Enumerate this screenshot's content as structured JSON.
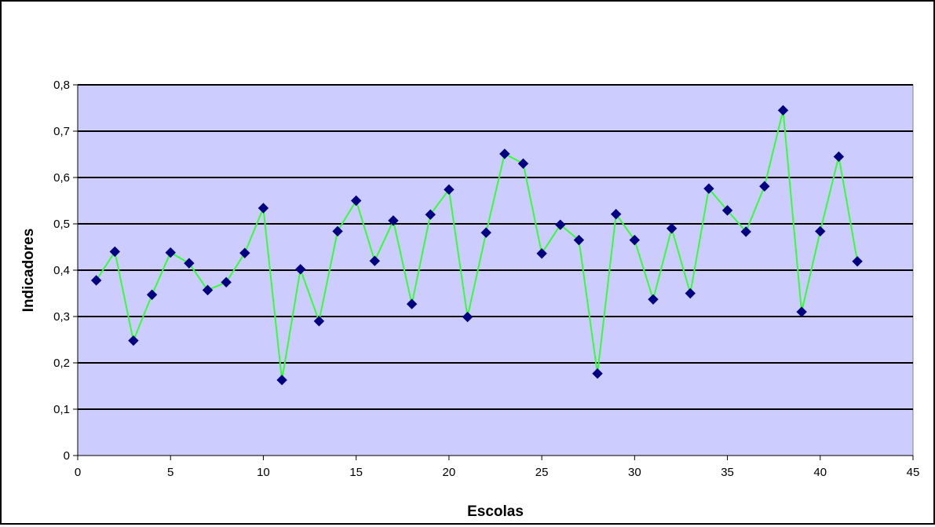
{
  "chart_data": {
    "type": "scatter",
    "title": "",
    "xlabel": "Escolas",
    "ylabel": "Indicadores",
    "xlim": [
      0,
      45
    ],
    "ylim": [
      0,
      0.8
    ],
    "x_ticks": [
      0,
      5,
      10,
      15,
      20,
      25,
      30,
      35,
      40,
      45
    ],
    "x_tick_labels": [
      "0",
      "5",
      "10",
      "15",
      "20",
      "25",
      "30",
      "35",
      "40",
      "45"
    ],
    "y_ticks": [
      0,
      0.1,
      0.2,
      0.3,
      0.4,
      0.5,
      0.6,
      0.7,
      0.8
    ],
    "y_tick_labels": [
      "0",
      "0,1",
      "0,2",
      "0,3",
      "0,4",
      "0,5",
      "0,6",
      "0,7",
      "0,8"
    ],
    "grid": {
      "horizontal": true,
      "vertical": false
    },
    "legend": "none",
    "colors": {
      "plot_background": "#ccccff",
      "line": "#33ff33",
      "marker": "#000080",
      "gridline": "#000000"
    },
    "series": [
      {
        "marker": "diamond",
        "x": [
          1,
          2,
          3,
          4,
          5,
          6,
          7,
          8,
          9,
          10,
          11,
          12,
          13,
          14,
          15,
          16,
          17,
          18,
          19,
          20,
          21,
          22,
          23,
          24,
          25,
          26,
          27,
          28,
          29,
          30,
          31,
          32,
          33,
          34,
          35,
          36,
          37,
          38,
          39,
          40,
          41,
          42
        ],
        "y": [
          0.378,
          0.44,
          0.248,
          0.347,
          0.438,
          0.415,
          0.357,
          0.374,
          0.437,
          0.534,
          0.163,
          0.402,
          0.29,
          0.484,
          0.55,
          0.42,
          0.507,
          0.327,
          0.52,
          0.574,
          0.299,
          0.481,
          0.651,
          0.63,
          0.436,
          0.498,
          0.465,
          0.177,
          0.521,
          0.465,
          0.337,
          0.49,
          0.35,
          0.576,
          0.529,
          0.483,
          0.581,
          0.745,
          0.31,
          0.484,
          0.645,
          0.419
        ]
      }
    ]
  }
}
